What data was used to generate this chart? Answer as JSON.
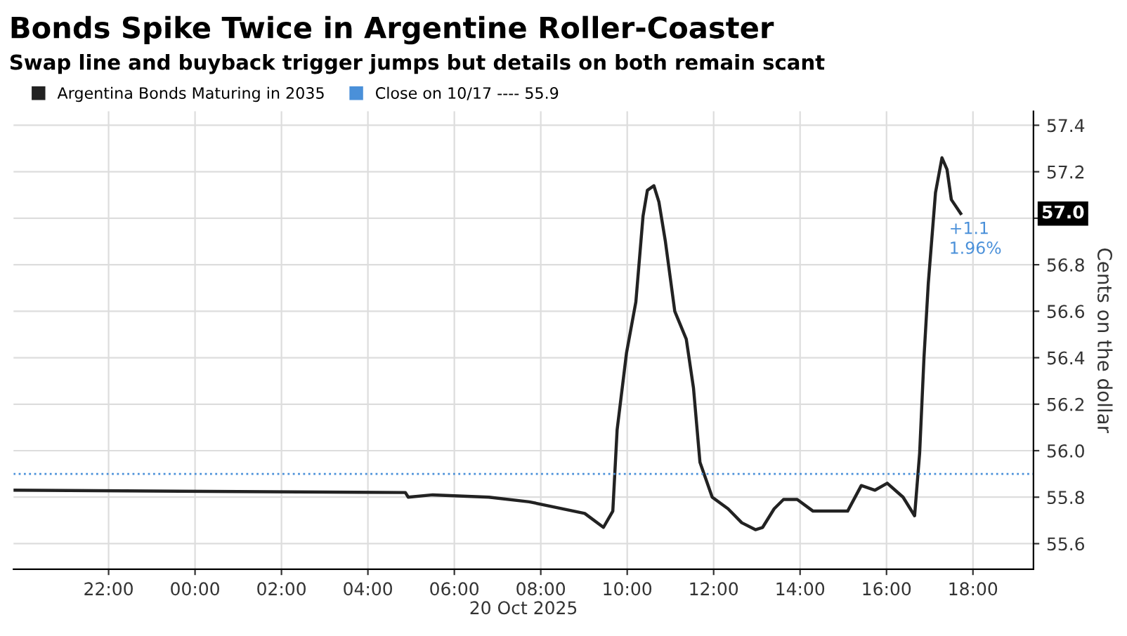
{
  "chart_data": {
    "type": "line",
    "title": "Bonds Spike Twice in Argentine Roller-Coaster",
    "subtitle": "Swap line and buyback trigger jumps but details on both remain scant",
    "xlabel": "20 Oct 2025",
    "ylabel": "Cents on the dollar",
    "series": [
      {
        "name": "Argentina Bonds Maturing in 2035",
        "color": "#222222",
        "x": [
          "2025-10-19T19:48",
          "2025-10-20T04:52",
          "2025-10-20T04:56",
          "2025-10-20T05:30",
          "2025-10-20T06:48",
          "2025-10-20T07:44",
          "2025-10-20T09:01",
          "2025-10-20T09:27",
          "2025-10-20T09:40",
          "2025-10-20T09:46",
          "2025-10-20T09:59",
          "2025-10-20T10:12",
          "2025-10-20T10:22",
          "2025-10-20T10:28",
          "2025-10-20T10:37",
          "2025-10-20T10:44",
          "2025-10-20T10:53",
          "2025-10-20T11:06",
          "2025-10-20T11:22",
          "2025-10-20T11:32",
          "2025-10-20T11:41",
          "2025-10-20T11:58",
          "2025-10-20T12:20",
          "2025-10-20T12:39",
          "2025-10-20T12:58",
          "2025-10-20T13:08",
          "2025-10-20T13:24",
          "2025-10-20T13:37",
          "2025-10-20T13:56",
          "2025-10-20T14:18",
          "2025-10-20T14:37",
          "2025-10-20T15:06",
          "2025-10-20T15:25",
          "2025-10-20T15:44",
          "2025-10-20T16:01",
          "2025-10-20T16:23",
          "2025-10-20T16:39",
          "2025-10-20T16:46",
          "2025-10-20T16:52",
          "2025-10-20T16:58",
          "2025-10-20T17:08",
          "2025-10-20T17:17",
          "2025-10-20T17:24",
          "2025-10-20T17:30",
          "2025-10-20T17:43"
        ],
        "values": [
          55.83,
          55.82,
          55.8,
          55.81,
          55.8,
          55.78,
          55.73,
          55.67,
          55.74,
          56.09,
          56.42,
          56.64,
          57.01,
          57.12,
          57.14,
          57.07,
          56.9,
          56.6,
          56.48,
          56.27,
          55.95,
          55.8,
          55.75,
          55.69,
          55.66,
          55.67,
          55.75,
          55.79,
          55.79,
          55.74,
          55.74,
          55.74,
          55.85,
          55.83,
          55.86,
          55.8,
          55.72,
          55.99,
          56.4,
          56.72,
          57.11,
          57.26,
          57.21,
          57.08,
          57.02
        ]
      }
    ],
    "ref_lines": [
      {
        "axis": "y",
        "value": 55.9,
        "label": "Close on 10/17 ---- 55.9",
        "color": "#4a90d9",
        "line_style": "dotted"
      }
    ],
    "annotations": [
      "57.0",
      {
        "text": "+1.1\n1.96%",
        "x": "2025-10-20T17:43",
        "y": 57.02
      }
    ],
    "xlim": [
      "2025-10-19T19:48",
      "2025-10-20T19:24"
    ],
    "ylim": [
      55.49,
      57.46
    ],
    "xticks": [
      {
        "value": "2025-10-19T22:00",
        "label": "22:00"
      },
      {
        "value": "2025-10-20T00:00",
        "label": "00:00"
      },
      {
        "value": "2025-10-20T02:00",
        "label": "02:00"
      },
      {
        "value": "2025-10-20T04:00",
        "label": "04:00"
      },
      {
        "value": "2025-10-20T06:00",
        "label": "06:00"
      },
      {
        "value": "2025-10-20T08:00",
        "label": "08:00"
      },
      {
        "value": "2025-10-20T10:00",
        "label": "10:00"
      },
      {
        "value": "2025-10-20T12:00",
        "label": "12:00"
      },
      {
        "value": "2025-10-20T14:00",
        "label": "14:00"
      },
      {
        "value": "2025-10-20T16:00",
        "label": "16:00"
      },
      {
        "value": "2025-10-20T18:00",
        "label": "18:00"
      }
    ],
    "yticks": [
      55.6,
      55.8,
      {
        "value": 56.0,
        "label": "56.0"
      },
      56.2,
      56.4,
      56.6,
      56.8,
      {
        "value": 57.0,
        "label": null
      },
      57.2,
      57.4
    ],
    "grid": true,
    "legend": "top left",
    "line_style": "solid",
    "marker": "none"
  }
}
